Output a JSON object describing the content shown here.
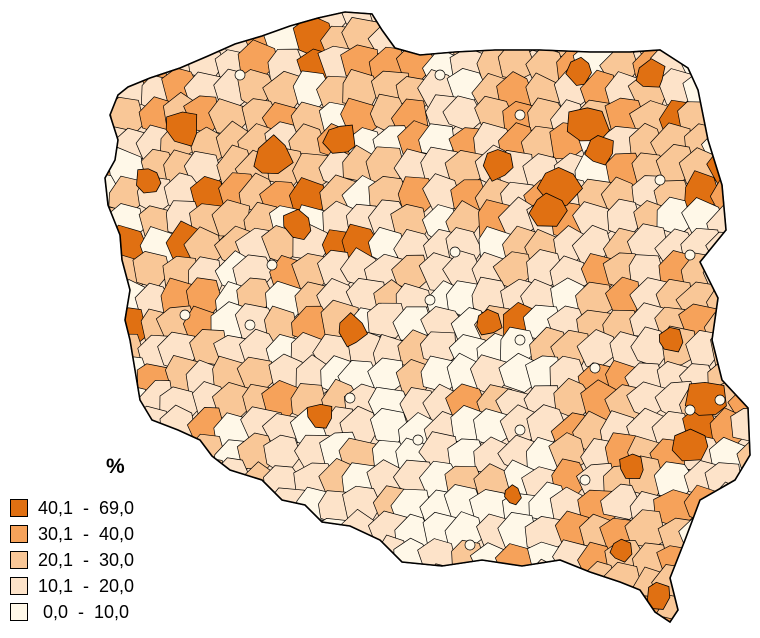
{
  "map": {
    "country": "Poland",
    "unit_type": "county",
    "colors": {
      "border": "#000000",
      "background": "#ffffff"
    }
  },
  "legend": {
    "title": "%",
    "classes": [
      {
        "label": "40,1  -  69,0",
        "min": 40.1,
        "max": 69.0,
        "color": "#e07012"
      },
      {
        "label": "30,1  -  40,0",
        "min": 30.1,
        "max": 40.0,
        "color": "#f6a25a"
      },
      {
        "label": "20,1  -  30,0",
        "min": 20.1,
        "max": 30.0,
        "color": "#f9c797"
      },
      {
        "label": "10,1  -  20,0",
        "min": 10.1,
        "max": 20.0,
        "color": "#fde3c9"
      },
      {
        "label": " 0,0  -  10,0",
        "min": 0.0,
        "max": 10.0,
        "color": "#fff8e8"
      }
    ]
  }
}
